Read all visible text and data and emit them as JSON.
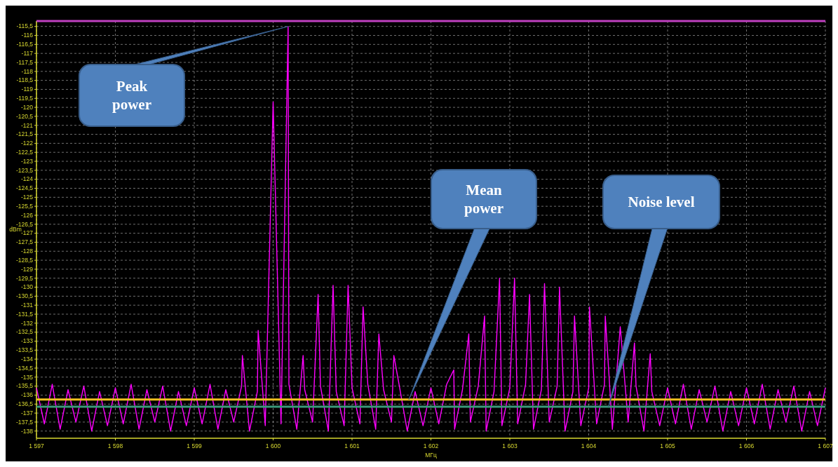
{
  "chart_data": {
    "type": "line",
    "xlabel": "МГц",
    "ylabel": "dBm",
    "xlim": [
      1597,
      1607
    ],
    "xticks": [
      {
        "value": 1597,
        "label": "1 597"
      },
      {
        "value": 1598,
        "label": "1 598"
      },
      {
        "value": 1599,
        "label": "1 599"
      },
      {
        "value": 1600,
        "label": "1 600"
      },
      {
        "value": 1601,
        "label": "1 601"
      },
      {
        "value": 1602,
        "label": "1 602"
      },
      {
        "value": 1603,
        "label": "1 603"
      },
      {
        "value": 1604,
        "label": "1 604"
      },
      {
        "value": 1605,
        "label": "1 605"
      },
      {
        "value": 1606,
        "label": "1 606"
      },
      {
        "value": 1607,
        "label": "1 607"
      }
    ],
    "ylim": [
      -138.4,
      -115.2
    ],
    "yticks": [
      {
        "value": -115.5,
        "label": "-115,5"
      },
      -116,
      {
        "value": -116.5,
        "label": "-116,5"
      },
      -117,
      {
        "value": -117.5,
        "label": "-117,5"
      },
      -118,
      {
        "value": -118.5,
        "label": "-118,5"
      },
      -119,
      {
        "value": -119.5,
        "label": "-119,5"
      },
      -120,
      {
        "value": -120.5,
        "label": "-120,5"
      },
      -121,
      {
        "value": -121.5,
        "label": "-121,5"
      },
      -122,
      {
        "value": -122.5,
        "label": "-122,5"
      },
      -123,
      {
        "value": -123.5,
        "label": "-123,5"
      },
      -124,
      {
        "value": -124.5,
        "label": "-124,5"
      },
      -125,
      {
        "value": -125.5,
        "label": "-125,5"
      },
      -126,
      {
        "value": -126.5,
        "label": "-126,5"
      },
      -127,
      {
        "value": -127.5,
        "label": "-127,5"
      },
      -128,
      {
        "value": -128.5,
        "label": "-128,5"
      },
      -129,
      {
        "value": -129.5,
        "label": "-129,5"
      },
      -130,
      {
        "value": -130.5,
        "label": "-130,5"
      },
      -131,
      {
        "value": -131.5,
        "label": "-131,5"
      },
      -132,
      {
        "value": -132.5,
        "label": "-132,5"
      },
      -133,
      {
        "value": -133.5,
        "label": "-133,5"
      },
      -134,
      {
        "value": -134.5,
        "label": "-134,5"
      },
      -135,
      {
        "value": -135.5,
        "label": "-135,5"
      },
      -136,
      {
        "value": -136.5,
        "label": "-136,5"
      },
      -137,
      {
        "value": -137.5,
        "label": "-137,5"
      },
      -138
    ],
    "grid": true,
    "series": [
      {
        "color": "#ff00ff",
        "x": [
          1597.0,
          1597.1,
          1597.2,
          1597.3,
          1597.4,
          1597.5,
          1597.6,
          1597.7,
          1597.8,
          1597.9,
          1598.0,
          1598.1,
          1598.2,
          1598.3,
          1598.4,
          1598.5,
          1598.6,
          1598.7,
          1598.8,
          1598.9,
          1599.0,
          1599.1,
          1599.2,
          1599.3,
          1599.4,
          1599.5,
          1599.6,
          1599.61,
          1599.7,
          1599.8,
          1599.81,
          1599.9,
          1600.0,
          1600.1,
          1600.19,
          1600.2,
          1600.3,
          1600.38,
          1600.4,
          1600.5,
          1600.57,
          1600.6,
          1600.7,
          1600.76,
          1600.8,
          1600.9,
          1600.95,
          1601.0,
          1601.1,
          1601.14,
          1601.2,
          1601.3,
          1601.34,
          1601.4,
          1601.5,
          1601.53,
          1601.6,
          1601.7,
          1601.8,
          1601.9,
          1602.0,
          1602.1,
          1602.2,
          1602.29,
          1602.3,
          1602.4,
          1602.48,
          1602.5,
          1602.6,
          1602.68,
          1602.7,
          1602.8,
          1602.87,
          1602.9,
          1603.0,
          1603.06,
          1603.1,
          1603.2,
          1603.25,
          1603.3,
          1603.4,
          1603.44,
          1603.5,
          1603.6,
          1603.63,
          1603.7,
          1603.8,
          1603.82,
          1603.9,
          1604.0,
          1604.01,
          1604.1,
          1604.2,
          1604.21,
          1604.3,
          1604.4,
          1604.5,
          1604.58,
          1604.6,
          1604.7,
          1604.78,
          1604.8,
          1604.9,
          1605.0,
          1605.1,
          1605.2,
          1605.3,
          1605.4,
          1605.5,
          1605.6,
          1605.7,
          1605.8,
          1605.9,
          1606.0,
          1606.1,
          1606.2,
          1606.3,
          1606.4,
          1606.5,
          1606.6,
          1606.7,
          1606.8,
          1606.9,
          1607.0
        ],
        "values": [
          -135.6,
          -137.6,
          -135.4,
          -137.9,
          -135.7,
          -137.5,
          -135.5,
          -138.0,
          -135.8,
          -137.7,
          -135.6,
          -137.6,
          -135.4,
          -137.9,
          -135.7,
          -137.5,
          -135.5,
          -138.0,
          -135.8,
          -137.7,
          -135.6,
          -137.6,
          -135.4,
          -137.9,
          -135.7,
          -137.5,
          -135.5,
          -133.8,
          -138.0,
          -135.8,
          -132.4,
          -137.7,
          -119.7,
          -137.6,
          -115.5,
          -135.4,
          -137.9,
          -133.8,
          -135.7,
          -137.5,
          -130.4,
          -135.5,
          -138.0,
          -129.9,
          -135.8,
          -137.7,
          -129.9,
          -135.6,
          -137.6,
          -131.1,
          -135.4,
          -137.9,
          -132.6,
          -135.7,
          -137.5,
          -133.8,
          -135.5,
          -138.0,
          -135.8,
          -137.7,
          -135.6,
          -137.6,
          -135.4,
          -134.6,
          -137.9,
          -135.7,
          -132.6,
          -137.5,
          -135.5,
          -131.6,
          -138.0,
          -135.8,
          -129.5,
          -137.7,
          -135.6,
          -129.5,
          -137.6,
          -135.4,
          -130.4,
          -137.9,
          -135.7,
          -129.8,
          -137.5,
          -135.5,
          -130.0,
          -138.0,
          -135.8,
          -131.6,
          -137.7,
          -135.6,
          -131.1,
          -137.6,
          -135.4,
          -131.6,
          -137.9,
          -132.2,
          -137.5,
          -133.1,
          -135.5,
          -138.0,
          -133.7,
          -135.8,
          -137.7,
          -135.6,
          -137.6,
          -135.4,
          -137.9,
          -135.7,
          -137.5,
          -135.5,
          -138.0,
          -135.8,
          -137.7,
          -135.6,
          -137.6,
          -135.4,
          -137.9,
          -135.7,
          -137.5,
          -135.5,
          -138.0,
          -135.8,
          -137.7,
          -135.6
        ]
      }
    ],
    "ref_lines": [
      {
        "axis": "y",
        "value": -115.2,
        "color": "#c040c0"
      },
      {
        "axis": "y",
        "value": -136.25,
        "color": "#f0c020"
      },
      {
        "axis": "y",
        "value": -136.65,
        "color": "#3a9a7a"
      }
    ],
    "annotations": [
      {
        "text": "Peak power",
        "x": 1600.19,
        "y": -115.5
      },
      {
        "text": "Mean power",
        "x": 1601.72,
        "y": -136.25
      },
      {
        "text": "Noise level",
        "x": 1604.25,
        "y": -136.65
      }
    ]
  }
}
